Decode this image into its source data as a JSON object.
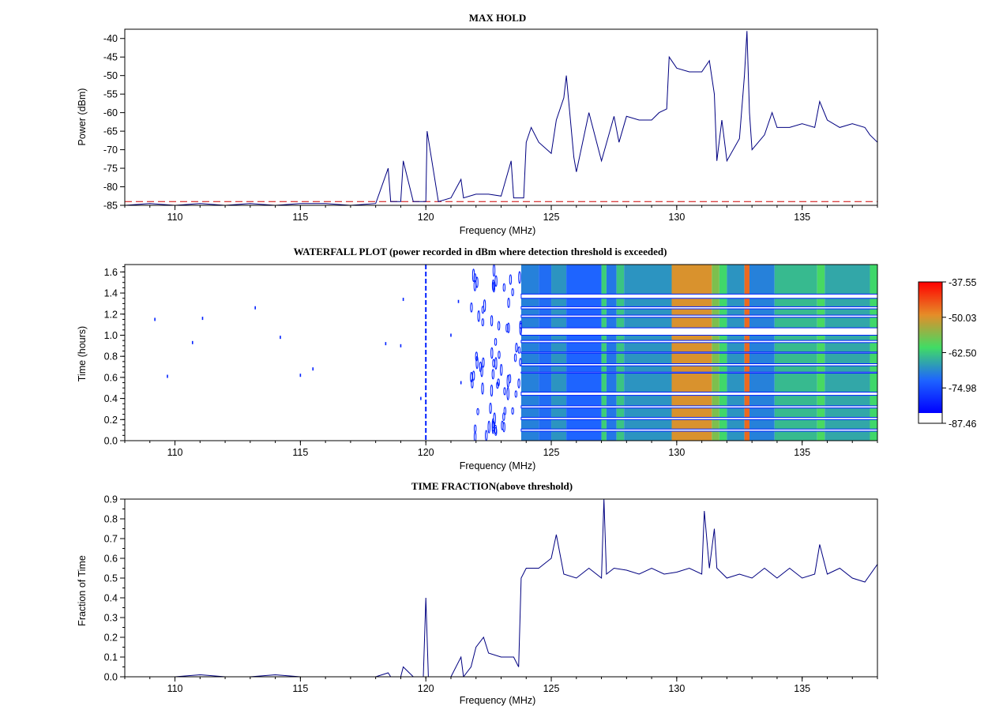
{
  "colors": {
    "trace": "#000080",
    "threshold": "#cc0000",
    "waterfall_outline": "#0020ff"
  },
  "chart_data": [
    {
      "type": "line",
      "title": "MAX HOLD",
      "xlabel": "Frequency (MHz)",
      "ylabel": "Power (dBm)",
      "xlim": [
        108,
        138
      ],
      "ylim": [
        -85,
        -37.5
      ],
      "xticks": [
        "110",
        "115",
        "120",
        "125",
        "130",
        "135"
      ],
      "yticks": [
        "-40",
        "-45",
        "-50",
        "-55",
        "-60",
        "-65",
        "-70",
        "-75",
        "-80",
        "-85"
      ],
      "threshold_dbm": -84,
      "series": [
        {
          "x": [
            108,
            109,
            110,
            111,
            112,
            113,
            114,
            115,
            116,
            117,
            118,
            118.5,
            118.6,
            119,
            119.1,
            119.5,
            120,
            120.05,
            120.5,
            121,
            121.4,
            121.5,
            122,
            122.5,
            123,
            123.4,
            123.5,
            123.9,
            124,
            124.2,
            124.5,
            125,
            125.2,
            125.5,
            125.6,
            125.9,
            126,
            126.5,
            127,
            127.5,
            127.7,
            128,
            128.5,
            129,
            129.3,
            129.6,
            129.7,
            130,
            130.5,
            131,
            131.3,
            131.5,
            131.6,
            131.8,
            132,
            132.5,
            132.7,
            132.8,
            132.9,
            133,
            133.5,
            133.8,
            134,
            134.5,
            135,
            135.5,
            135.7,
            136,
            136.5,
            137,
            137.5,
            137.7,
            138
          ],
          "y": [
            -85,
            -84.5,
            -85,
            -84.5,
            -85,
            -84.5,
            -85,
            -84.5,
            -84.5,
            -85,
            -84.5,
            -75,
            -84,
            -84,
            -73,
            -84,
            -84,
            -65,
            -84,
            -83,
            -78,
            -83,
            -82,
            -82,
            -82.5,
            -73,
            -83,
            -83,
            -68,
            -64,
            -68,
            -71,
            -62,
            -56,
            -50,
            -72,
            -76,
            -60,
            -73,
            -61,
            -68,
            -61,
            -62,
            -62,
            -60,
            -59,
            -45,
            -48,
            -49,
            -49,
            -46,
            -55,
            -73,
            -62,
            -73,
            -67,
            -50,
            -38,
            -60,
            -70,
            -66,
            -60,
            -64,
            -64,
            -63,
            -64,
            -57,
            -62,
            -64,
            -63,
            -64,
            -66,
            -68
          ]
        }
      ]
    },
    {
      "type": "heatmap",
      "title": "WATERFALL PLOT (power recorded in dBm where detection threshold is exceeded)",
      "xlabel": "Frequency (MHz)",
      "ylabel": "Time (hours)",
      "xlim": [
        108,
        138
      ],
      "ylim": [
        0.0,
        1.67
      ],
      "xticks": [
        "110",
        "115",
        "120",
        "125",
        "130",
        "135"
      ],
      "yticks": [
        "0.0",
        "0.2",
        "0.4",
        "0.6",
        "0.8",
        "1.0",
        "1.2",
        "1.4",
        "1.6"
      ],
      "colorbar": {
        "ticks": [
          "-37.55",
          "-50.03",
          "-62.50",
          "-74.98",
          "-87.46"
        ],
        "range": [
          -87.46,
          -37.55
        ],
        "below_threshold_color": "#ffffff"
      },
      "profile": [
        {
          "range": [
            123.8,
            124.5
          ],
          "value": -72
        },
        {
          "range": [
            124.5,
            125.0
          ],
          "value": -74
        },
        {
          "range": [
            125.0,
            125.6
          ],
          "value": -70
        },
        {
          "range": [
            125.6,
            127.0
          ],
          "value": -75
        },
        {
          "range": [
            127.0,
            127.2
          ],
          "value": -64
        },
        {
          "range": [
            127.2,
            127.6
          ],
          "value": -73
        },
        {
          "range": [
            127.6,
            127.9
          ],
          "value": -65
        },
        {
          "range": [
            127.9,
            129.8
          ],
          "value": -70
        },
        {
          "range": [
            129.8,
            131.4
          ],
          "value": -51
        },
        {
          "range": [
            131.4,
            131.7
          ],
          "value": -58
        },
        {
          "range": [
            131.7,
            132.0
          ],
          "value": -63
        },
        {
          "range": [
            132.0,
            132.7
          ],
          "value": -70
        },
        {
          "range": [
            132.7,
            132.9
          ],
          "value": -47
        },
        {
          "range": [
            132.9,
            133.9
          ],
          "value": -72
        },
        {
          "range": [
            133.9,
            135.6
          ],
          "value": -66
        },
        {
          "range": [
            135.6,
            135.9
          ],
          "value": -62
        },
        {
          "range": [
            135.9,
            137.7
          ],
          "value": -68
        },
        {
          "range": [
            137.7,
            138.0
          ],
          "value": -63
        }
      ],
      "gaps_hours": [
        [
          1.35,
          1.39
        ],
        [
          1.25,
          1.27
        ],
        [
          1.17,
          1.19
        ],
        [
          1.0,
          1.07
        ],
        [
          0.93,
          0.95
        ],
        [
          0.83,
          0.84
        ],
        [
          0.71,
          0.73
        ],
        [
          0.64,
          0.65
        ],
        [
          0.43,
          0.46
        ],
        [
          0.31,
          0.33
        ],
        [
          0.2,
          0.22
        ],
        [
          0.09,
          0.11
        ]
      ],
      "isolated_detections": [
        [
          109.2,
          1.15
        ],
        [
          109.7,
          0.61
        ],
        [
          110.7,
          0.93
        ],
        [
          111.1,
          1.16
        ],
        [
          113.2,
          1.26
        ],
        [
          114.2,
          0.98
        ],
        [
          115.0,
          0.62
        ],
        [
          115.5,
          0.68
        ],
        [
          118.4,
          0.92
        ],
        [
          119.0,
          0.9
        ],
        [
          119.1,
          1.34
        ],
        [
          121.0,
          1.0
        ],
        [
          121.3,
          1.32
        ],
        [
          121.4,
          0.55
        ],
        [
          119.8,
          0.4
        ]
      ]
    },
    {
      "type": "line",
      "title": "TIME FRACTION(above threshold)",
      "xlabel": "Frequency (MHz)",
      "ylabel": "Fraction of Time",
      "xlim": [
        108,
        138
      ],
      "ylim": [
        0.0,
        0.9
      ],
      "xticks": [
        "110",
        "115",
        "120",
        "125",
        "130",
        "135"
      ],
      "yticks": [
        "0.0",
        "0.1",
        "0.2",
        "0.3",
        "0.4",
        "0.5",
        "0.6",
        "0.7",
        "0.8",
        "0.9"
      ],
      "series": [
        {
          "x": [
            108,
            109,
            110,
            111,
            112,
            113,
            114,
            115,
            116,
            117,
            118,
            118.5,
            118.6,
            119,
            119.1,
            119.5,
            119.9,
            120.0,
            120.1,
            120.5,
            121,
            121.4,
            121.5,
            121.8,
            122,
            122.3,
            122.5,
            123,
            123.5,
            123.7,
            123.8,
            124,
            124.5,
            125,
            125.2,
            125.5,
            126,
            126.5,
            127,
            127.1,
            127.2,
            127.5,
            128,
            128.5,
            129,
            129.5,
            130,
            130.5,
            131,
            131.1,
            131.3,
            131.5,
            131.6,
            132,
            132.5,
            133,
            133.5,
            134,
            134.5,
            135,
            135.5,
            135.7,
            136,
            136.5,
            137,
            137.5,
            138
          ],
          "y": [
            0.0,
            0.0,
            0.0,
            0.01,
            0.0,
            0.0,
            0.01,
            0.0,
            0.0,
            0.0,
            0.0,
            0.02,
            0.0,
            0.0,
            0.05,
            0.0,
            0.0,
            0.4,
            0.0,
            0.0,
            0.0,
            0.1,
            0.0,
            0.05,
            0.15,
            0.2,
            0.12,
            0.1,
            0.1,
            0.05,
            0.5,
            0.55,
            0.55,
            0.6,
            0.72,
            0.52,
            0.5,
            0.55,
            0.5,
            0.9,
            0.52,
            0.55,
            0.54,
            0.52,
            0.55,
            0.52,
            0.53,
            0.55,
            0.52,
            0.84,
            0.55,
            0.75,
            0.55,
            0.5,
            0.52,
            0.5,
            0.55,
            0.5,
            0.55,
            0.5,
            0.52,
            0.67,
            0.52,
            0.55,
            0.5,
            0.48,
            0.57
          ]
        }
      ]
    }
  ]
}
